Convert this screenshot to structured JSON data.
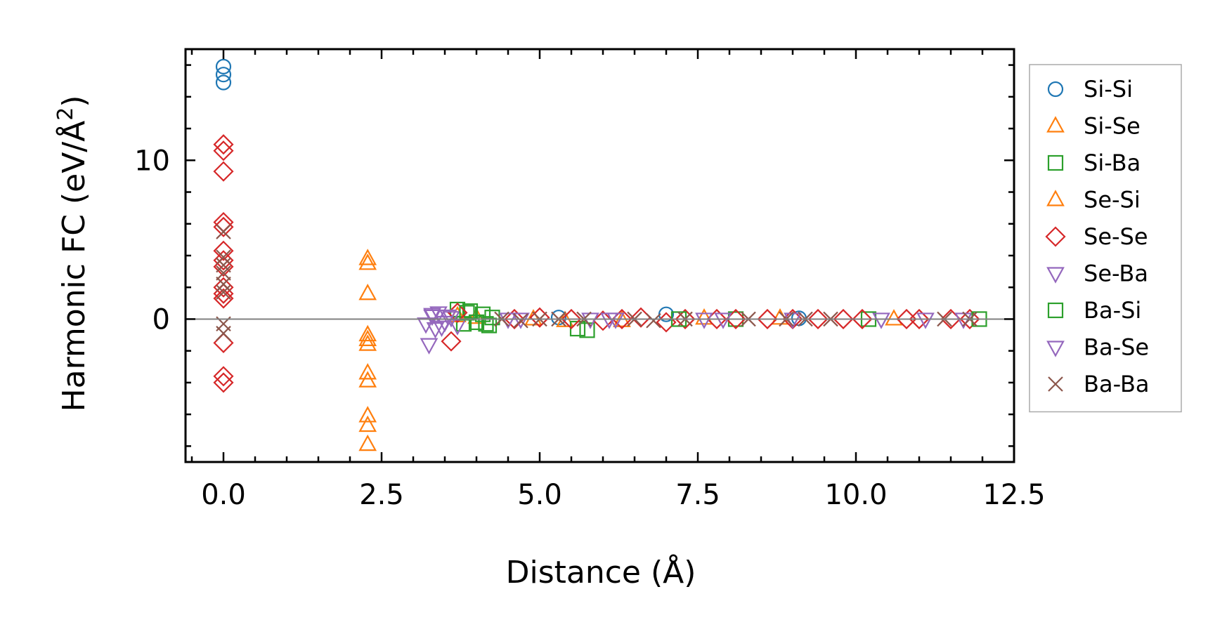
{
  "chart_data": {
    "type": "scatter",
    "title": "",
    "xlabel": "Distance (Å)",
    "ylabel_main": "Harmonic FC (eV/Å",
    "ylabel_sup": "2",
    "ylabel_close": ")",
    "xlim": [
      -0.6,
      12.5
    ],
    "ylim": [
      -9,
      17
    ],
    "x_ticks": [
      0,
      2.5,
      5,
      7.5,
      10,
      12.5
    ],
    "x_tick_labels": [
      "0.0",
      "2.5",
      "5.0",
      "7.5",
      "10.0",
      "12.5"
    ],
    "y_ticks": [
      0,
      10
    ],
    "y_tick_labels": [
      "0",
      "10"
    ],
    "zero_line": true,
    "grid": false,
    "legend_position": "right-outside",
    "series": [
      {
        "name": "Si-Si",
        "color": "#1f77b4",
        "marker": "circle",
        "points": [
          [
            0,
            15.9
          ],
          [
            0,
            15.4
          ],
          [
            0,
            14.9
          ],
          [
            7.0,
            0.3
          ],
          [
            5.3,
            0.1
          ],
          [
            9.1,
            0.05
          ]
        ]
      },
      {
        "name": "Si-Se",
        "color": "#ff7f0e",
        "marker": "triangle-up",
        "points": [
          [
            2.28,
            3.8
          ],
          [
            2.28,
            3.5
          ],
          [
            2.28,
            1.6
          ],
          [
            2.28,
            -1.0
          ],
          [
            2.28,
            -1.3
          ],
          [
            2.28,
            -1.6
          ],
          [
            2.28,
            -3.4
          ],
          [
            2.28,
            -3.9
          ],
          [
            2.28,
            -6.1
          ],
          [
            2.28,
            -6.7
          ],
          [
            2.28,
            -7.9
          ],
          [
            4.0,
            0.1
          ],
          [
            5.4,
            -0.1
          ],
          [
            7.6,
            0.05
          ],
          [
            10.6,
            0.0
          ]
        ]
      },
      {
        "name": "Si-Ba",
        "color": "#2ca02c",
        "marker": "square",
        "points": [
          [
            3.7,
            0.6
          ],
          [
            3.8,
            -0.3
          ],
          [
            3.9,
            0.5
          ],
          [
            4.0,
            -0.2
          ],
          [
            4.1,
            0.3
          ],
          [
            4.2,
            -0.4
          ],
          [
            4.25,
            0.1
          ],
          [
            5.6,
            -0.6
          ],
          [
            5.75,
            -0.7
          ],
          [
            8.1,
            0.0
          ],
          [
            10.2,
            0.0
          ]
        ]
      },
      {
        "name": "Se-Si",
        "color": "#ff7f0e",
        "marker": "triangle-up",
        "points": [
          [
            3.7,
            0.2
          ],
          [
            4.9,
            0.0
          ],
          [
            6.3,
            -0.1
          ],
          [
            8.8,
            0.05
          ]
        ]
      },
      {
        "name": "Se-Se",
        "color": "#d62728",
        "marker": "diamond",
        "points": [
          [
            0,
            11.0
          ],
          [
            0,
            10.6
          ],
          [
            0,
            9.3
          ],
          [
            0,
            6.1
          ],
          [
            0,
            5.8
          ],
          [
            0,
            4.3
          ],
          [
            0,
            3.7
          ],
          [
            0,
            3.3
          ],
          [
            0,
            2.0
          ],
          [
            0,
            1.6
          ],
          [
            0,
            1.3
          ],
          [
            0,
            -1.5
          ],
          [
            0,
            -3.6
          ],
          [
            0,
            -4.0
          ],
          [
            3.6,
            -1.4
          ],
          [
            3.7,
            0.4
          ],
          [
            4.6,
            0.0
          ],
          [
            5.0,
            0.1
          ],
          [
            5.5,
            0.0
          ],
          [
            6.0,
            -0.1
          ],
          [
            6.3,
            0.0
          ],
          [
            6.6,
            0.1
          ],
          [
            7.0,
            -0.2
          ],
          [
            7.3,
            0.0
          ],
          [
            7.8,
            0.0
          ],
          [
            8.1,
            0.0
          ],
          [
            8.6,
            0.0
          ],
          [
            9.0,
            0.0
          ],
          [
            9.4,
            0.0
          ],
          [
            9.8,
            0.0
          ],
          [
            10.1,
            0.0
          ],
          [
            10.8,
            0.0
          ],
          [
            11.0,
            0.0
          ],
          [
            11.5,
            0.0
          ],
          [
            11.8,
            0.0
          ]
        ]
      },
      {
        "name": "Se-Ba",
        "color": "#9467bd",
        "marker": "triangle-down",
        "points": [
          [
            3.2,
            -0.3
          ],
          [
            3.25,
            -1.6
          ],
          [
            3.3,
            0.2
          ],
          [
            3.35,
            -0.6
          ],
          [
            3.4,
            0.4
          ],
          [
            3.5,
            -0.2
          ],
          [
            3.6,
            0.1
          ],
          [
            3.7,
            -0.4
          ],
          [
            4.5,
            0.0
          ],
          [
            5.8,
            0.0
          ],
          [
            6.1,
            0.0
          ],
          [
            7.6,
            0.0
          ],
          [
            9.0,
            0.0
          ],
          [
            11.1,
            0.0
          ],
          [
            11.7,
            0.0
          ]
        ]
      },
      {
        "name": "Ba-Si",
        "color": "#2ca02c",
        "marker": "square",
        "points": [
          [
            3.85,
            0.4
          ],
          [
            4.15,
            -0.3
          ],
          [
            7.2,
            0.0
          ],
          [
            11.95,
            0.0
          ]
        ]
      },
      {
        "name": "Ba-Se",
        "color": "#9467bd",
        "marker": "triangle-down",
        "points": [
          [
            3.3,
            0.3
          ],
          [
            3.45,
            -0.5
          ],
          [
            3.55,
            0.2
          ],
          [
            4.7,
            0.0
          ],
          [
            6.2,
            0.0
          ],
          [
            7.9,
            0.0
          ],
          [
            10.4,
            0.0
          ]
        ]
      },
      {
        "name": "Ba-Ba",
        "color": "#8c564b",
        "marker": "x",
        "points": [
          [
            0,
            5.5
          ],
          [
            0,
            3.9
          ],
          [
            0,
            3.4
          ],
          [
            0,
            2.9
          ],
          [
            0,
            2.2
          ],
          [
            0,
            1.7
          ],
          [
            0,
            -0.3
          ],
          [
            0,
            -0.9
          ],
          [
            4.4,
            0.0
          ],
          [
            4.7,
            -0.1
          ],
          [
            5.0,
            0.0
          ],
          [
            5.3,
            0.0
          ],
          [
            5.7,
            0.0
          ],
          [
            6.5,
            0.0
          ],
          [
            6.8,
            -0.1
          ],
          [
            7.3,
            0.0
          ],
          [
            8.3,
            0.0
          ],
          [
            8.9,
            0.0
          ],
          [
            9.2,
            0.0
          ],
          [
            9.6,
            0.0
          ],
          [
            11.4,
            0.0
          ],
          [
            11.8,
            0.0
          ]
        ]
      }
    ]
  }
}
